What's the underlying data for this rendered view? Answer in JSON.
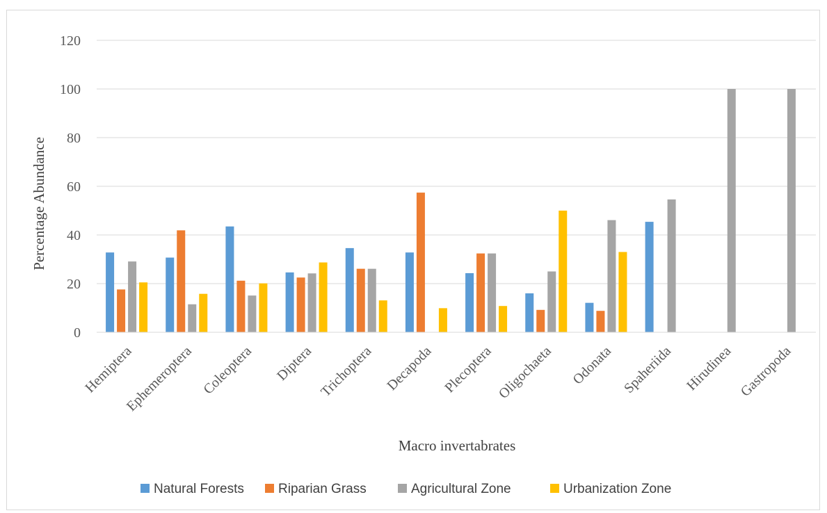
{
  "chart_data": {
    "type": "bar",
    "title": "",
    "xlabel": "Macro invertabrates",
    "ylabel": "Percentage Abundance",
    "ylim": [
      0,
      120
    ],
    "yticks": [
      0,
      20,
      40,
      60,
      80,
      100,
      120
    ],
    "grid": true,
    "legend_position": "bottom",
    "categories": [
      "Hemiptera",
      "Ephemeroptera",
      "Coleoptera",
      "Diptera",
      "Trichoptera",
      "Decapoda",
      "Plecoptera",
      "Oligochaeta",
      "Odonata",
      "Spaheriida",
      "Hirudinea",
      "Gastropoda"
    ],
    "series": [
      {
        "name": "Natural Forests",
        "color": "#5b9bd5",
        "values": [
          32.8,
          30.7,
          43.5,
          24.6,
          34.6,
          32.8,
          24.3,
          16.0,
          12.1,
          45.4,
          0,
          0
        ]
      },
      {
        "name": "Riparian Grass",
        "color": "#ed7d31",
        "values": [
          17.6,
          41.9,
          21.2,
          22.5,
          26.1,
          57.4,
          32.4,
          9.2,
          8.8,
          0,
          0,
          0
        ]
      },
      {
        "name": "Agricultural Zone",
        "color": "#a5a5a5",
        "values": [
          29.1,
          11.5,
          15.1,
          24.2,
          26.1,
          0,
          32.4,
          25.0,
          46.1,
          54.6,
          100,
          100
        ]
      },
      {
        "name": "Urbanization Zone",
        "color": "#ffc000",
        "values": [
          20.5,
          15.8,
          20.1,
          28.7,
          13.1,
          9.9,
          10.8,
          50.0,
          33.0,
          0,
          0,
          0
        ]
      }
    ]
  }
}
